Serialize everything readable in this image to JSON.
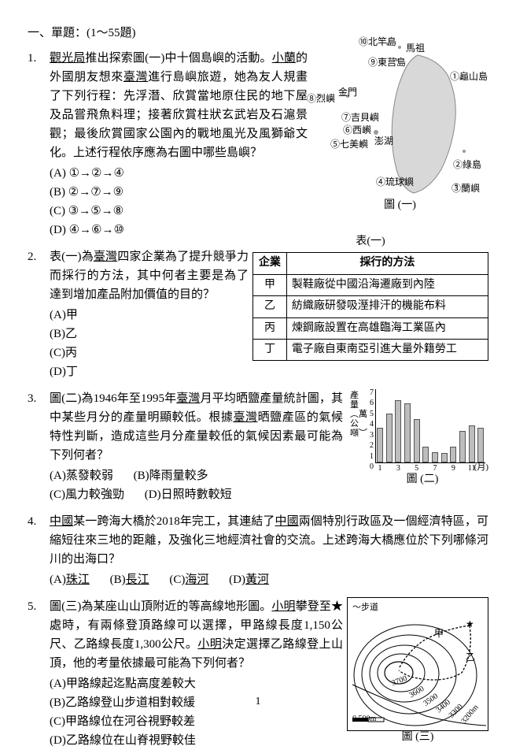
{
  "section_header": "一、單題：(1～55題)",
  "page_number": "1",
  "q1": {
    "num": "1.",
    "text_parts": [
      "觀光局",
      "推出探索圖(一)中十個島嶼的活動。",
      "小蘭",
      "的外國朋友想來",
      "臺灣",
      "進行島嶼旅遊，她為友人規畫了下列行程：先浮潛、欣賞當地原住民的地下屋及品嘗飛魚料理；接著欣賞柱狀玄武岩及石滬景觀；最後欣賞國家公園內的戰地風光及風獅爺文化。上述行程依序應為右圖中哪些島嶼？"
    ],
    "options": [
      "(A) ①→②→④",
      "(B) ②→⑦→⑨",
      "(C) ③→⑤→⑧",
      "(D) ④→⑥→⑩"
    ],
    "fig_caption": "圖 (一)",
    "map_labels": {
      "l10": "⑩北竿島",
      "mazu": "馬祖",
      "l9": "⑨東莒島",
      "l8": "⑧烈嶼",
      "jinmen": "金門",
      "l7": "⑦吉貝嶼",
      "l6": "⑥西嶼",
      "l5": "⑤七美嶼",
      "penghu": "澎湖",
      "l4": "④琉球嶼",
      "l3": "③蘭嶼",
      "l2": "②綠島",
      "l1": "①龜山島"
    }
  },
  "q2": {
    "num": "2.",
    "text_parts": [
      "表(一)為",
      "臺灣",
      "四家企業為了提升競爭力而採行的方法，其中何者主要是為了達到增加產品附加價值的目的？"
    ],
    "options": [
      "(A)甲",
      "(B)乙",
      "(C)丙",
      "(D)丁"
    ],
    "table_caption": "表(一)",
    "table": {
      "headers": [
        "企業",
        "採行的方法"
      ],
      "rows": [
        [
          "甲",
          "製鞋廠從中國沿海遷廠到內陸"
        ],
        [
          "乙",
          "紡織廠研發吸溼排汗的機能布料"
        ],
        [
          "丙",
          "煉鋼廠設置在高雄臨海工業區內"
        ],
        [
          "丁",
          "電子廠自東南亞引進大量外籍勞工"
        ]
      ]
    }
  },
  "q3": {
    "num": "3.",
    "text_parts": [
      "圖(二)為1946年至1995年",
      "臺灣",
      "月平均晒鹽產量統計圖，其中某些月分的產量明顯較低。根據",
      "臺灣",
      "晒鹽產區的氣候特性判斷，造成這些月分產量較低的氣候因素最可能為下列何者？"
    ],
    "options": [
      "(A)蒸發較弱",
      "(B)降雨量較多",
      "(C)風力較強勁",
      "(D)日照時數較短"
    ],
    "fig_caption": "圖 (二)",
    "chart": {
      "ylabel": "產量︵萬公噸︶",
      "ymax": 7,
      "yticks": [
        0,
        1,
        2,
        3,
        4,
        5,
        6,
        7
      ],
      "xticks_shown": [
        "1",
        "3",
        "5",
        "7",
        "9",
        "11"
      ],
      "xaxis_label": "(月)",
      "values": [
        3.3,
        4.6,
        5.9,
        5.6,
        4.1,
        1.5,
        1.0,
        0.9,
        1.5,
        3.0,
        3.5,
        3.3
      ],
      "bar_color": "#bdbdbd"
    }
  },
  "q4": {
    "num": "4.",
    "text_parts": [
      "中國",
      "某一跨海大橋於2018年完工，其連結了",
      "中國",
      "兩個特別行政區及一個經濟特區，可縮短往來三地的距離，及強化三地經濟社會的交流。上述跨海大橋應位於下列哪條河川的出海口？"
    ],
    "options": [
      {
        "label": "(A)",
        "val": "珠江"
      },
      {
        "label": "(B)",
        "val": "長江"
      },
      {
        "label": "(C)",
        "val": "海河"
      },
      {
        "label": "(D)",
        "val": "黃河"
      }
    ]
  },
  "q5": {
    "num": "5.",
    "text_parts": [
      "圖(三)為某座山山頂附近的等高線地形圖。",
      "小明",
      "攀登至★處時，有兩條登頂路線可以選擇，甲路線長度1,150公尺、乙路線長度1,300公尺。",
      "小明",
      "決定選擇乙路線登上山頂，他的考量依據最可能為下列何者？"
    ],
    "options": [
      "(A)甲路線起迄點高度差較大",
      "(B)乙路線登山步道相對較緩",
      "(C)甲路線位在河谷視野較差",
      "(D)乙路線位在山脊視野較佳"
    ],
    "fig_caption": "圖 (三)",
    "legend": "～步道",
    "labels": {
      "jia": "甲",
      "yi": "乙",
      "star": "★"
    },
    "contours": [
      "3700",
      "3600",
      "3500",
      "3400",
      "3300",
      "3200m"
    ],
    "scale": "0    500m"
  }
}
